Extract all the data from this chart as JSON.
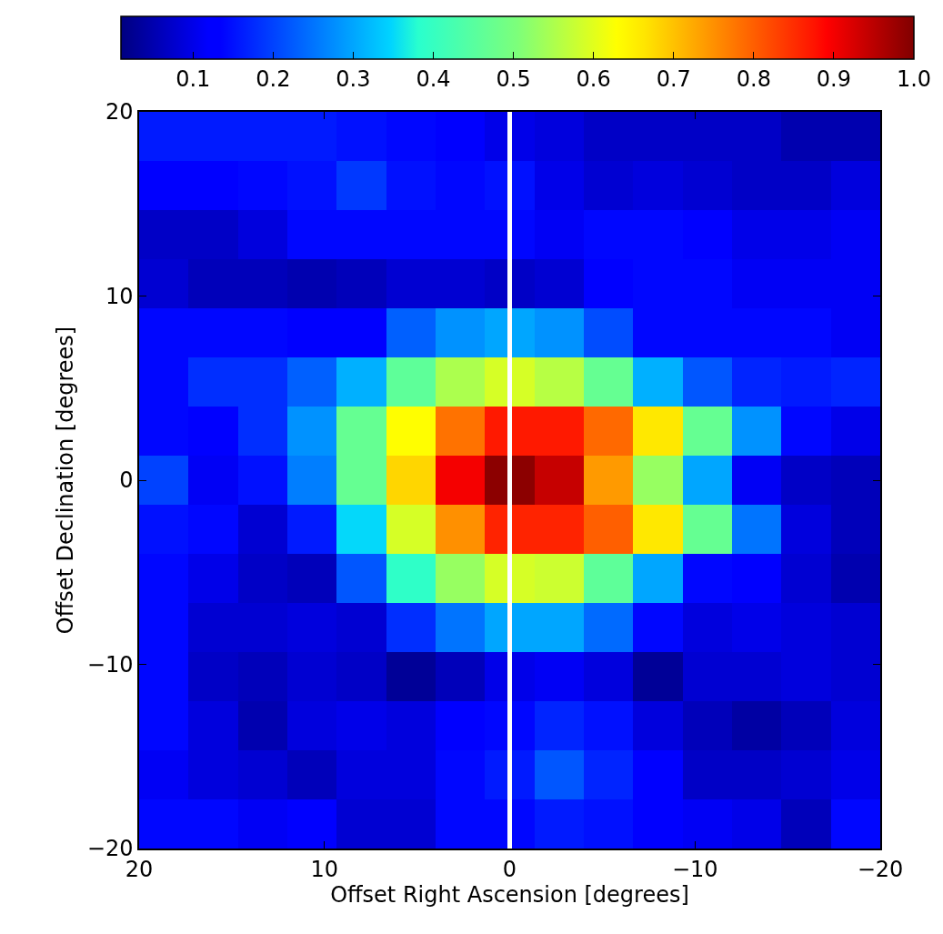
{
  "chart_data": {
    "type": "heatmap",
    "xlabel": "Offset Right Ascension [degrees]",
    "ylabel": "Offset Declination [degrees]",
    "xlim": [
      20,
      -20
    ],
    "xticks": [
      20,
      10,
      0,
      {
        "value": -10,
        "label": "−10"
      },
      {
        "value": -20,
        "label": "−20"
      }
    ],
    "ylim": [
      -20,
      20
    ],
    "yticks": [
      {
        "value": -20,
        "label": "−20"
      },
      {
        "value": -10,
        "label": "−10"
      },
      0,
      10,
      20
    ],
    "clim": [
      0.01,
      1.0
    ],
    "cticks": [
      0.1,
      0.2,
      0.3,
      0.4,
      0.5,
      0.6,
      0.7,
      0.8,
      0.9,
      {
        "value": 1.0,
        "label": "1.0"
      }
    ],
    "cells": [
      [
        0.16,
        0.16,
        0.16,
        0.16,
        0.15,
        0.14,
        0.12,
        0.1,
        0.09,
        0.07,
        0.07,
        0.07,
        0.07,
        0.05,
        0.05
      ],
      [
        0.12,
        0.12,
        0.14,
        0.15,
        0.19,
        0.15,
        0.14,
        0.15,
        0.1,
        0.08,
        0.09,
        0.08,
        0.07,
        0.07,
        0.09
      ],
      [
        0.07,
        0.07,
        0.09,
        0.14,
        0.14,
        0.14,
        0.14,
        0.14,
        0.11,
        0.14,
        0.14,
        0.13,
        0.1,
        0.1,
        0.11
      ],
      [
        0.08,
        0.06,
        0.06,
        0.05,
        0.06,
        0.08,
        0.08,
        0.07,
        0.08,
        0.12,
        0.14,
        0.14,
        0.11,
        0.11,
        0.11
      ],
      [
        0.14,
        0.14,
        0.14,
        0.13,
        0.13,
        0.23,
        0.28,
        0.3,
        0.28,
        0.21,
        0.14,
        0.14,
        0.14,
        0.14,
        0.11
      ],
      [
        0.14,
        0.18,
        0.18,
        0.23,
        0.31,
        0.46,
        0.55,
        0.59,
        0.56,
        0.47,
        0.31,
        0.22,
        0.17,
        0.16,
        0.17
      ],
      [
        0.14,
        0.13,
        0.18,
        0.28,
        0.47,
        0.63,
        0.78,
        0.87,
        0.87,
        0.79,
        0.66,
        0.47,
        0.28,
        0.14,
        0.1
      ],
      [
        0.2,
        0.11,
        0.15,
        0.26,
        0.47,
        0.68,
        0.9,
        0.99,
        0.94,
        0.74,
        0.53,
        0.3,
        0.11,
        0.07,
        0.06
      ],
      [
        0.15,
        0.14,
        0.08,
        0.16,
        0.35,
        0.59,
        0.75,
        0.86,
        0.86,
        0.8,
        0.66,
        0.47,
        0.25,
        0.09,
        0.06
      ],
      [
        0.14,
        0.1,
        0.07,
        0.06,
        0.22,
        0.39,
        0.53,
        0.59,
        0.58,
        0.46,
        0.3,
        0.14,
        0.12,
        0.08,
        0.05
      ],
      [
        0.14,
        0.08,
        0.08,
        0.09,
        0.08,
        0.18,
        0.25,
        0.3,
        0.3,
        0.24,
        0.14,
        0.09,
        0.1,
        0.09,
        0.08
      ],
      [
        0.14,
        0.07,
        0.06,
        0.08,
        0.07,
        0.03,
        0.06,
        0.1,
        0.11,
        0.09,
        0.03,
        0.08,
        0.08,
        0.09,
        0.08
      ],
      [
        0.14,
        0.09,
        0.05,
        0.09,
        0.1,
        0.09,
        0.12,
        0.14,
        0.17,
        0.15,
        0.09,
        0.06,
        0.04,
        0.06,
        0.09
      ],
      [
        0.11,
        0.09,
        0.08,
        0.06,
        0.09,
        0.09,
        0.14,
        0.16,
        0.22,
        0.17,
        0.13,
        0.07,
        0.07,
        0.08,
        0.1
      ],
      [
        0.14,
        0.14,
        0.11,
        0.12,
        0.08,
        0.08,
        0.14,
        0.14,
        0.16,
        0.15,
        0.13,
        0.11,
        0.1,
        0.06,
        0.14
      ]
    ],
    "ref_lines": [
      {
        "axis": "x",
        "value": 0,
        "color": "#ffffff"
      }
    ]
  }
}
